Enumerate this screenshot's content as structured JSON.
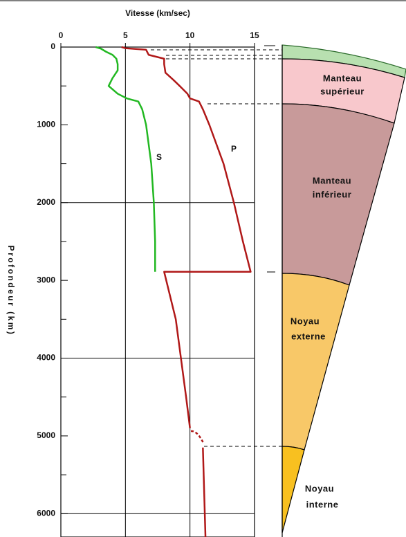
{
  "chart_data": {
    "type": "line",
    "title": "Vitesse (km/sec)",
    "y_label": "Profondeur (km)",
    "xlim": [
      0,
      15
    ],
    "xticks": [
      0,
      5,
      10,
      15
    ],
    "ylim": [
      0,
      6300
    ],
    "yticks": [
      0,
      1000,
      2000,
      3000,
      4000,
      5000,
      6000
    ],
    "y_minor_ticks": [
      500,
      1500,
      2500,
      3500,
      4500,
      5500
    ],
    "grid_yticks": [
      2000,
      4000,
      6000
    ],
    "series": [
      {
        "name": "P",
        "color": "#b01818",
        "depths": [
          0,
          15,
          35,
          100,
          150,
          220,
          330,
          420,
          500,
          600,
          660,
          700,
          800,
          1000,
          1500,
          2000,
          2500,
          2890,
          2890,
          3500,
          4000,
          4500,
          4900,
          null,
          5150,
          6300
        ],
        "values": [
          4.7,
          5.0,
          6.6,
          6.8,
          8.0,
          8.0,
          8.1,
          8.7,
          9.2,
          9.8,
          10.0,
          10.7,
          11.0,
          11.5,
          12.6,
          13.4,
          14.1,
          14.7,
          8.0,
          8.9,
          9.3,
          9.7,
          10.0,
          null,
          11.0,
          11.2
        ]
      },
      {
        "name": "S",
        "color": "#22b822",
        "depths": [
          0,
          20,
          60,
          100,
          150,
          220,
          300,
          400,
          500,
          600,
          660,
          700,
          800,
          1000,
          1500,
          2000,
          2500,
          2890
        ],
        "values": [
          2.7,
          3.1,
          3.5,
          4.0,
          4.3,
          4.4,
          4.4,
          4.0,
          3.7,
          4.4,
          5.1,
          6.0,
          6.3,
          6.6,
          7.0,
          7.2,
          7.3,
          7.3
        ]
      }
    ]
  },
  "layers": [
    [
      "Manteau",
      "supérieur"
    ],
    [
      "Manteau",
      "inférieur"
    ],
    [
      "Noyau",
      "externe"
    ],
    [
      "Noyau",
      "interne"
    ]
  ]
}
